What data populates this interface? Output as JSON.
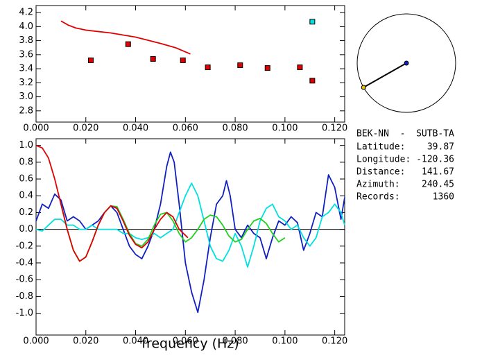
{
  "chart_data": [
    {
      "type": "scatter",
      "xlim": [
        0,
        0.124
      ],
      "ylim": [
        2.64,
        4.3
      ],
      "xticks": [
        {
          "value": 0,
          "label": "0.000"
        },
        {
          "value": 0.02,
          "label": "0.020"
        },
        {
          "value": 0.04,
          "label": "0.040"
        },
        {
          "value": 0.06,
          "label": "0.060"
        },
        {
          "value": 0.08,
          "label": "0.080"
        },
        {
          "value": 0.1,
          "label": "0.100"
        },
        {
          "value": 0.12,
          "label": "0.120"
        }
      ],
      "yticks": [
        2.8,
        {
          "value": 3,
          "label": "3.0"
        },
        3.2,
        3.4,
        3.6,
        3.8,
        {
          "value": 4,
          "label": "4.0"
        },
        4.2
      ],
      "series": [
        {
          "type": "line",
          "color": "#e00000",
          "x": [
            0.01,
            0.013,
            0.016,
            0.02,
            0.03,
            0.04,
            0.05,
            0.056,
            0.062
          ],
          "values": [
            4.08,
            4.02,
            3.98,
            3.95,
            3.91,
            3.85,
            3.76,
            3.7,
            3.61
          ]
        },
        {
          "type": "scatter",
          "color": "#e00000",
          "x": [
            0.022,
            0.037,
            0.047,
            0.059,
            0.069,
            0.082,
            0.093,
            0.106,
            0.111
          ],
          "values": [
            3.52,
            3.75,
            3.54,
            3.52,
            3.42,
            3.45,
            3.41,
            3.42,
            3.23
          ]
        },
        {
          "type": "scatter",
          "color": "#00e0e0",
          "x": [
            0.111
          ],
          "values": [
            4.07
          ]
        }
      ]
    },
    {
      "type": "line",
      "xlabel": "frequency (Hz)",
      "zero_line": true,
      "xlim": [
        0,
        0.124
      ],
      "ylim": [
        -1.26,
        1.08
      ],
      "xticks": [
        {
          "value": 0,
          "label": "0.000"
        },
        {
          "value": 0.02,
          "label": "0.020"
        },
        {
          "value": 0.04,
          "label": "0.040"
        },
        {
          "value": 0.06,
          "label": "0.060"
        },
        {
          "value": 0.08,
          "label": "0.080"
        },
        {
          "value": 0.1,
          "label": "0.100"
        },
        {
          "value": 0.12,
          "label": "0.120"
        }
      ],
      "yticks": [
        {
          "value": 1,
          "label": "1.0"
        },
        0.8,
        0.6,
        0.4,
        0.2,
        {
          "value": 0,
          "label": "0.0"
        },
        -0.2,
        -0.4,
        -0.6,
        -0.8,
        {
          "value": -1,
          "label": "-1.0"
        }
      ],
      "series": [
        {
          "color": "#1020c0",
          "x": [
            0,
            0.0025,
            0.005,
            0.0075,
            0.01,
            0.0125,
            0.015,
            0.0175,
            0.02,
            0.0225,
            0.025,
            0.0275,
            0.03,
            0.0325,
            0.035,
            0.0375,
            0.04,
            0.0425,
            0.045,
            0.0475,
            0.05,
            0.0525,
            0.054,
            0.0555,
            0.0575,
            0.06,
            0.0625,
            0.065,
            0.0675,
            0.07,
            0.0725,
            0.075,
            0.0765,
            0.078,
            0.08,
            0.0825,
            0.085,
            0.0875,
            0.09,
            0.0925,
            0.095,
            0.0975,
            0.1,
            0.1025,
            0.105,
            0.1075,
            0.11,
            0.1125,
            0.115,
            0.1175,
            0.12,
            0.1225,
            0.124
          ],
          "values": [
            0.1,
            0.3,
            0.25,
            0.42,
            0.35,
            0.1,
            0.15,
            0.1,
            0.0,
            0.05,
            0.1,
            0.2,
            0.28,
            0.2,
            0.0,
            -0.2,
            -0.3,
            -0.35,
            -0.2,
            0.0,
            0.3,
            0.75,
            0.92,
            0.8,
            0.3,
            -0.4,
            -0.75,
            -0.99,
            -0.6,
            -0.1,
            0.3,
            0.4,
            0.58,
            0.4,
            0.0,
            -0.1,
            0.05,
            -0.05,
            -0.1,
            -0.35,
            -0.1,
            0.1,
            0.05,
            0.15,
            0.08,
            -0.25,
            -0.05,
            0.2,
            0.15,
            0.65,
            0.5,
            0.12,
            0.38
          ]
        },
        {
          "color": "#00e0e0",
          "x": [
            0,
            0.0025,
            0.005,
            0.0075,
            0.01,
            0.0125,
            0.015,
            0.0175,
            0.02,
            0.0225,
            0.025,
            0.0275,
            0.03,
            0.0325,
            0.035,
            0.0375,
            0.04,
            0.0425,
            0.045,
            0.0475,
            0.05,
            0.0525,
            0.055,
            0.0575,
            0.06,
            0.0625,
            0.065,
            0.0675,
            0.07,
            0.0725,
            0.075,
            0.0775,
            0.08,
            0.0825,
            0.085,
            0.0875,
            0.09,
            0.0925,
            0.095,
            0.0975,
            0.1,
            0.1025,
            0.105,
            0.1075,
            0.11,
            0.1125,
            0.115,
            0.1175,
            0.12,
            0.1225,
            0.124
          ],
          "values": [
            0.0,
            -0.02,
            0.05,
            0.12,
            0.12,
            0.05,
            0.05,
            0.0,
            0.0,
            0.05,
            0.0,
            0.0,
            0.0,
            0.0,
            -0.05,
            -0.05,
            -0.1,
            -0.12,
            -0.1,
            -0.05,
            -0.1,
            -0.05,
            0.0,
            0.2,
            0.4,
            0.55,
            0.4,
            0.1,
            -0.2,
            -0.35,
            -0.38,
            -0.25,
            -0.05,
            -0.2,
            -0.45,
            -0.2,
            0.1,
            0.25,
            0.3,
            0.15,
            0.1,
            0.0,
            0.05,
            -0.1,
            -0.2,
            -0.1,
            0.15,
            0.2,
            0.3,
            0.2,
            0.05
          ]
        },
        {
          "color": "#20d020",
          "x": [
            0.01,
            0.0125,
            0.015,
            0.0175,
            0.02,
            0.0225,
            0.025,
            0.0275,
            0.03,
            0.0325,
            0.035,
            0.0375,
            0.04,
            0.0425,
            0.045,
            0.0475,
            0.05,
            0.0525,
            0.055,
            0.0575,
            0.06,
            0.0625,
            0.065,
            0.0675,
            0.07,
            0.0725,
            0.075,
            0.0775,
            0.08,
            0.0825,
            0.085,
            0.0875,
            0.09,
            0.0925,
            0.095,
            0.0975,
            0.1
          ],
          "values": [
            0.3,
            0.0,
            -0.25,
            -0.38,
            -0.33,
            -0.15,
            0.05,
            0.2,
            0.28,
            0.27,
            0.12,
            -0.05,
            -0.17,
            -0.2,
            -0.12,
            0.05,
            0.18,
            0.2,
            0.1,
            -0.05,
            -0.15,
            -0.1,
            0.0,
            0.12,
            0.17,
            0.15,
            0.05,
            -0.08,
            -0.15,
            -0.12,
            0.0,
            0.1,
            0.13,
            0.07,
            -0.05,
            -0.15,
            -0.1
          ]
        },
        {
          "color": "#e00000",
          "x": [
            0,
            0.0025,
            0.005,
            0.0075,
            0.01,
            0.0125,
            0.015,
            0.0175,
            0.02,
            0.0225,
            0.025,
            0.0275,
            0.03,
            0.0325,
            0.035,
            0.0375,
            0.04,
            0.0425,
            0.045,
            0.0475,
            0.05,
            0.0525,
            0.055,
            0.0575,
            0.061
          ],
          "values": [
            1.0,
            0.97,
            0.85,
            0.6,
            0.3,
            0.0,
            -0.25,
            -0.38,
            -0.33,
            -0.15,
            0.05,
            0.2,
            0.28,
            0.25,
            0.1,
            -0.07,
            -0.18,
            -0.22,
            -0.15,
            0.0,
            0.12,
            0.2,
            0.15,
            0.0,
            -0.1
          ]
        }
      ]
    }
  ],
  "station_info": {
    "title": "BEK-NN  -  SUTB-TA",
    "latitude_label": "Latitude:",
    "latitude": 39.87,
    "longitude_label": "Longitude:",
    "longitude": -120.36,
    "distance_label": "Distance:",
    "distance": 141.67,
    "azimuth_label": "Azimuth:",
    "azimuth": 240.45,
    "records_label": "Records:",
    "records": 1360
  }
}
